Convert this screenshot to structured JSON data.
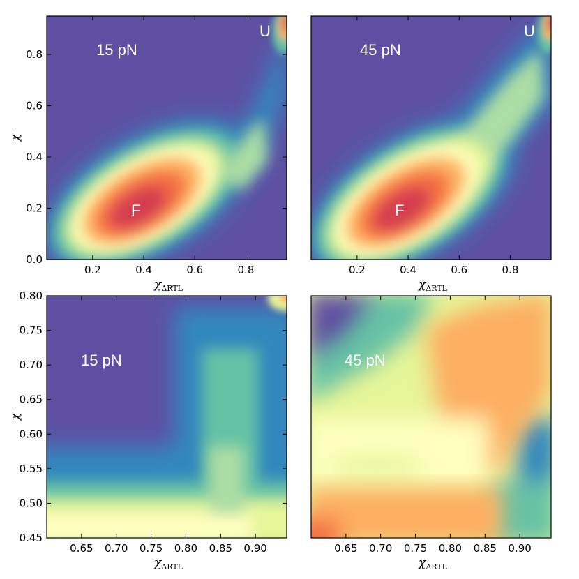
{
  "colors": {
    "colormap": [
      "#5e4fa2",
      "#3288bd",
      "#66c2a5",
      "#abdda4",
      "#e6f598",
      "#ffffbf",
      "#fee08b",
      "#fdae61",
      "#f46d43",
      "#d53e4f",
      "#9e0142"
    ]
  },
  "chart_data": [
    {
      "type": "heatmap",
      "title": "",
      "xlabel_main": "χ",
      "xlabel_sub": "ΔRTL",
      "ylabel": "χ",
      "xlim": [
        0.02,
        0.96
      ],
      "ylim": [
        0.0,
        0.95
      ],
      "xticks": [
        "0.2",
        "0.4",
        "0.6",
        "0.8"
      ],
      "yticks": [
        "0.0",
        "0.2",
        "0.4",
        "0.6",
        "0.8"
      ],
      "force_label": "15 pN",
      "annotations": [
        {
          "text": "F",
          "x": 0.36,
          "y": 0.19
        },
        {
          "text": "U",
          "x": 0.91,
          "y": 0.9
        }
      ],
      "density_peaks": [
        {
          "x": 0.4,
          "y": 0.2,
          "level": 1.0
        },
        {
          "x": 0.955,
          "y": 0.93,
          "level": 1.0
        }
      ]
    },
    {
      "type": "heatmap",
      "title": "",
      "xlabel_main": "χ",
      "xlabel_sub": "ΔRTL",
      "ylabel": "",
      "xlim": [
        0.02,
        0.96
      ],
      "ylim": [
        0.0,
        0.95
      ],
      "xticks": [
        "0.2",
        "0.4",
        "0.6",
        "0.8"
      ],
      "yticks": [],
      "force_label": "45 pN",
      "annotations": [
        {
          "text": "F",
          "x": 0.36,
          "y": 0.19
        },
        {
          "text": "U",
          "x": 0.91,
          "y": 0.9
        }
      ],
      "density_peaks": [
        {
          "x": 0.4,
          "y": 0.2,
          "level": 1.0
        },
        {
          "x": 0.955,
          "y": 0.93,
          "level": 1.0
        }
      ]
    },
    {
      "type": "heatmap",
      "title": "",
      "xlabel_main": "χ",
      "xlabel_sub": "ΔRTL",
      "ylabel": "χ",
      "xlim": [
        0.6,
        0.945
      ],
      "ylim": [
        0.45,
        0.8
      ],
      "xticks": [
        "0.65",
        "0.70",
        "0.75",
        "0.80",
        "0.85",
        "0.90"
      ],
      "yticks": [
        "0.45",
        "0.50",
        "0.55",
        "0.60",
        "0.65",
        "0.70",
        "0.75",
        "0.80"
      ],
      "force_label": "15 pN",
      "annotations": []
    },
    {
      "type": "heatmap",
      "title": "",
      "xlabel_main": "χ",
      "xlabel_sub": "ΔRTL",
      "ylabel": "",
      "xlim": [
        0.6,
        0.945
      ],
      "ylim": [
        0.45,
        0.8
      ],
      "xticks": [
        "0.65",
        "0.70",
        "0.75",
        "0.80",
        "0.85",
        "0.90"
      ],
      "yticks": [],
      "force_label": "45 pN",
      "annotations": []
    }
  ]
}
